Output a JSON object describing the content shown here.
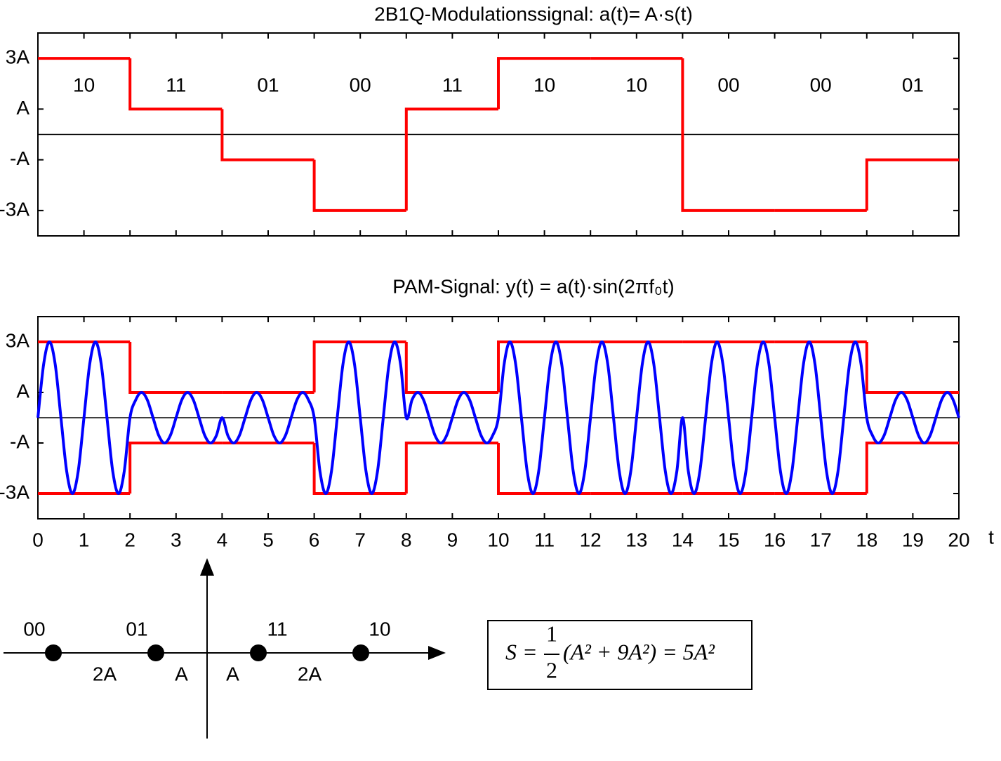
{
  "chart_data": [
    {
      "type": "step",
      "title": "2B1Q-Modulationssignal:  a(t)= A·s(t)",
      "x": [
        0,
        2,
        4,
        6,
        8,
        10,
        12,
        14,
        16,
        18
      ],
      "categories": [
        "10",
        "11",
        "01",
        "00",
        "11",
        "10",
        "10",
        "00",
        "00",
        "01"
      ],
      "values": [
        3,
        1,
        -1,
        -3,
        1,
        3,
        3,
        -3,
        -3,
        -1
      ],
      "color": "#ff0000",
      "xlim": [
        0,
        20
      ],
      "ylim": [
        -4,
        4
      ],
      "xticks": [
        0,
        1,
        2,
        3,
        4,
        5,
        6,
        7,
        8,
        9,
        10,
        11,
        12,
        13,
        14,
        15,
        16,
        17,
        18,
        19,
        20
      ],
      "xtick_labels": false,
      "yticks": [
        {
          "value": 3,
          "label": "3A"
        },
        {
          "value": 1,
          "label": "A"
        },
        {
          "value": -1,
          "label": "-A"
        },
        {
          "value": -3,
          "label": "-3A"
        }
      ],
      "zero_line": true
    },
    {
      "type": "line",
      "title": "PAM-Signal:  y(t) = a(t)·sin(2πf₀t)",
      "x_label": "t",
      "color": "#0000ff",
      "x": [
        0,
        0.125,
        0.25,
        0.375,
        0.5,
        0.625,
        0.75,
        0.875,
        1,
        1.125,
        1.25,
        1.375,
        1.5,
        1.625,
        1.75,
        1.875,
        2,
        2.125,
        2.25,
        2.375,
        2.5,
        2.625,
        2.75,
        2.875,
        3,
        3.125,
        3.25,
        3.375,
        3.5,
        3.625,
        3.75,
        3.875,
        4,
        4.125,
        4.25,
        4.375,
        4.5,
        4.625,
        4.75,
        4.875,
        5,
        5.125,
        5.25,
        5.375,
        5.5,
        5.625,
        5.75,
        5.875,
        6,
        6.125,
        6.25,
        6.375,
        6.5,
        6.625,
        6.75,
        6.875,
        7,
        7.125,
        7.25,
        7.375,
        7.5,
        7.625,
        7.75,
        7.875,
        8,
        8.125,
        8.25,
        8.375,
        8.5,
        8.625,
        8.75,
        8.875,
        9,
        9.125,
        9.25,
        9.375,
        9.5,
        9.625,
        9.75,
        9.875,
        10,
        10.125,
        10.25,
        10.375,
        10.5,
        10.625,
        10.75,
        10.875,
        11,
        11.125,
        11.25,
        11.375,
        11.5,
        11.625,
        11.75,
        11.875,
        12,
        12.125,
        12.25,
        12.375,
        12.5,
        12.625,
        12.75,
        12.875,
        13,
        13.125,
        13.25,
        13.375,
        13.5,
        13.625,
        13.75,
        13.875,
        14,
        14.125,
        14.25,
        14.375,
        14.5,
        14.625,
        14.75,
        14.875,
        15,
        15.125,
        15.25,
        15.375,
        15.5,
        15.625,
        15.75,
        15.875,
        16,
        16.125,
        16.25,
        16.375,
        16.5,
        16.625,
        16.75,
        16.875,
        17,
        17.125,
        17.25,
        17.375,
        17.5,
        17.625,
        17.75,
        17.875,
        18,
        18.125,
        18.25,
        18.375,
        18.5,
        18.625,
        18.75,
        18.875,
        19,
        19.125,
        19.25,
        19.375,
        19.5,
        19.625,
        19.75,
        19.875,
        20
      ],
      "values": [
        0,
        2.121,
        3,
        2.121,
        0,
        -2.121,
        -3,
        -2.121,
        0,
        2.121,
        3,
        2.121,
        0,
        -2.121,
        -3,
        -2.121,
        0,
        0.707,
        1,
        0.707,
        0,
        -0.707,
        -1,
        -0.707,
        0,
        0.707,
        1,
        0.707,
        0,
        -0.707,
        -1,
        -0.707,
        0,
        -0.707,
        -1,
        -0.707,
        0,
        0.707,
        1,
        0.707,
        0,
        -0.707,
        -1,
        -0.707,
        0,
        0.707,
        1,
        0.707,
        0,
        -2.121,
        -3,
        -2.121,
        0,
        2.121,
        3,
        2.121,
        0,
        -2.121,
        -3,
        -2.121,
        0,
        2.121,
        3,
        2.121,
        0,
        0.707,
        1,
        0.707,
        0,
        -0.707,
        -1,
        -0.707,
        0,
        0.707,
        1,
        0.707,
        0,
        -0.707,
        -1,
        -0.707,
        0,
        2.121,
        3,
        2.121,
        0,
        -2.121,
        -3,
        -2.121,
        0,
        2.121,
        3,
        2.121,
        0,
        -2.121,
        -3,
        -2.121,
        0,
        2.121,
        3,
        2.121,
        0,
        -2.121,
        -3,
        -2.121,
        0,
        2.121,
        3,
        2.121,
        0,
        -2.121,
        -3,
        -2.121,
        0,
        -2.121,
        -3,
        -2.121,
        0,
        2.121,
        3,
        2.121,
        0,
        -2.121,
        -3,
        -2.121,
        0,
        2.121,
        3,
        2.121,
        0,
        -2.121,
        -3,
        -2.121,
        0,
        2.121,
        3,
        2.121,
        0,
        -2.121,
        -3,
        -2.121,
        0,
        2.121,
        3,
        2.121,
        0,
        -0.707,
        -1,
        -0.707,
        0,
        0.707,
        1,
        0.707,
        0,
        -0.707,
        -1,
        -0.707,
        0,
        0.707,
        1,
        0.707,
        0
      ],
      "envelope": {
        "color": "#ff0000",
        "x": [
          0,
          2,
          4,
          6,
          8,
          10,
          12,
          14,
          16,
          18
        ],
        "upper": [
          3,
          1,
          1,
          3,
          1,
          3,
          3,
          3,
          3,
          1
        ],
        "lower": [
          -3,
          -1,
          -1,
          -3,
          -1,
          -3,
          -3,
          -3,
          -3,
          -1
        ]
      },
      "xlim": [
        0,
        20
      ],
      "ylim": [
        -4,
        4
      ],
      "xticks": [
        0,
        1,
        2,
        3,
        4,
        5,
        6,
        7,
        8,
        9,
        10,
        11,
        12,
        13,
        14,
        15,
        16,
        17,
        18,
        19,
        20
      ],
      "xtick_labels": true,
      "yticks": [
        {
          "value": 3,
          "label": "3A"
        },
        {
          "value": 1,
          "label": "A"
        },
        {
          "value": -1,
          "label": "-A"
        },
        {
          "value": -3,
          "label": "-3A"
        }
      ],
      "zero_line": true
    }
  ],
  "constellation": {
    "labels": [
      "00",
      "01",
      "11",
      "10"
    ],
    "values": [
      -3,
      -1,
      1,
      3
    ],
    "spacing_labels": [
      "2A",
      "A",
      "A",
      "2A"
    ]
  },
  "formula": {
    "lhs": "S =",
    "numerator": "1",
    "denominator": "2",
    "rhs": "(A² + 9A²) = 5A²"
  }
}
